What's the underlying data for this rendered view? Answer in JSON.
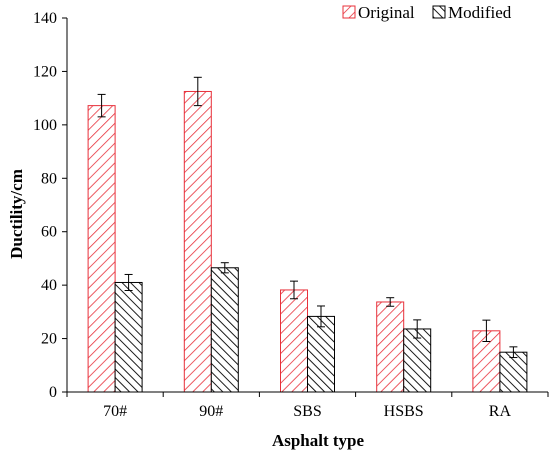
{
  "chart_data": {
    "type": "bar",
    "categories": [
      "70#",
      "90#",
      "SBS",
      "HSBS",
      "RA"
    ],
    "series": [
      {
        "name": "Original",
        "values": [
          107.2,
          112.5,
          38.2,
          33.7,
          22.9
        ],
        "errors": [
          4.2,
          5.3,
          3.3,
          1.6,
          4.0
        ],
        "color": "#e8303a",
        "pattern": "hatch-forward"
      },
      {
        "name": "Modified",
        "values": [
          41.0,
          46.5,
          28.3,
          23.6,
          14.9
        ],
        "errors": [
          3.0,
          1.9,
          3.9,
          3.4,
          2.0
        ],
        "color": "#000000",
        "pattern": "hatch-backward"
      }
    ],
    "title": "",
    "xlabel": "Asphalt type",
    "ylabel": "Ductility/cm",
    "ylim": [
      0,
      140
    ],
    "yticks": [
      "0",
      "20",
      "40",
      "60",
      "80",
      "100",
      "120",
      "140"
    ],
    "grid": false,
    "legend_position": "top-right"
  }
}
